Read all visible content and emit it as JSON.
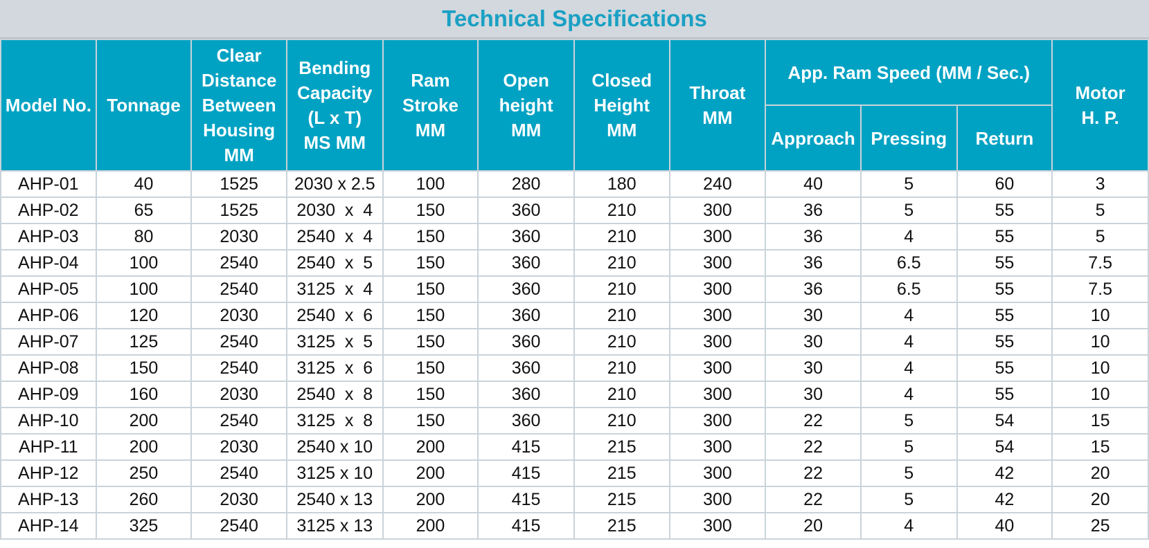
{
  "title": "Technical Specifications",
  "headers": {
    "model": "Model No.",
    "tonnage": "Tonnage",
    "clear_distance": [
      "Clear",
      "Distance",
      "Between",
      "Housing",
      "MM"
    ],
    "bending": [
      "Bending",
      "Capacity",
      "(L x T)",
      "MS MM"
    ],
    "ram_stroke": [
      "Ram",
      "Stroke",
      "MM"
    ],
    "open_height": [
      "Open",
      "height",
      "MM"
    ],
    "closed_height": [
      "Closed",
      "Height",
      "MM"
    ],
    "throat": [
      "Throat",
      "MM"
    ],
    "ram_speed": "App. Ram Speed (MM / Sec.)",
    "approach": "Approach",
    "pressing": "Pressing",
    "return": "Return",
    "motor": [
      "Motor",
      "H. P."
    ]
  },
  "rows": [
    [
      "AHP-01",
      "40",
      "1525",
      "2030 x 2.5",
      "100",
      "280",
      "180",
      "240",
      "40",
      "5",
      "60",
      "3"
    ],
    [
      "AHP-02",
      "65",
      "1525",
      "2030  x  4",
      "150",
      "360",
      "210",
      "300",
      "36",
      "5",
      "55",
      "5"
    ],
    [
      "AHP-03",
      "80",
      "2030",
      "2540  x  4",
      "150",
      "360",
      "210",
      "300",
      "36",
      "4",
      "55",
      "5"
    ],
    [
      "AHP-04",
      "100",
      "2540",
      "2540  x  5",
      "150",
      "360",
      "210",
      "300",
      "36",
      "6.5",
      "55",
      "7.5"
    ],
    [
      "AHP-05",
      "100",
      "2540",
      "3125  x  4",
      "150",
      "360",
      "210",
      "300",
      "36",
      "6.5",
      "55",
      "7.5"
    ],
    [
      "AHP-06",
      "120",
      "2030",
      "2540  x  6",
      "150",
      "360",
      "210",
      "300",
      "30",
      "4",
      "55",
      "10"
    ],
    [
      "AHP-07",
      "125",
      "2540",
      "3125  x  5",
      "150",
      "360",
      "210",
      "300",
      "30",
      "4",
      "55",
      "10"
    ],
    [
      "AHP-08",
      "150",
      "2540",
      "3125  x  6",
      "150",
      "360",
      "210",
      "300",
      "30",
      "4",
      "55",
      "10"
    ],
    [
      "AHP-09",
      "160",
      "2030",
      "2540  x  8",
      "150",
      "360",
      "210",
      "300",
      "30",
      "4",
      "55",
      "10"
    ],
    [
      "AHP-10",
      "200",
      "2540",
      "3125  x  8",
      "150",
      "360",
      "210",
      "300",
      "22",
      "5",
      "54",
      "15"
    ],
    [
      "AHP-11",
      "200",
      "2030",
      "2540 x 10",
      "200",
      "415",
      "215",
      "300",
      "22",
      "5",
      "54",
      "15"
    ],
    [
      "AHP-12",
      "250",
      "2540",
      "3125 x 10",
      "200",
      "415",
      "215",
      "300",
      "22",
      "5",
      "42",
      "20"
    ],
    [
      "AHP-13",
      "260",
      "2030",
      "2540 x 13",
      "200",
      "415",
      "215",
      "300",
      "22",
      "5",
      "42",
      "20"
    ],
    [
      "AHP-14",
      "325",
      "2540",
      "3125 x 13",
      "200",
      "415",
      "215",
      "300",
      "20",
      "4",
      "40",
      "25"
    ]
  ]
}
